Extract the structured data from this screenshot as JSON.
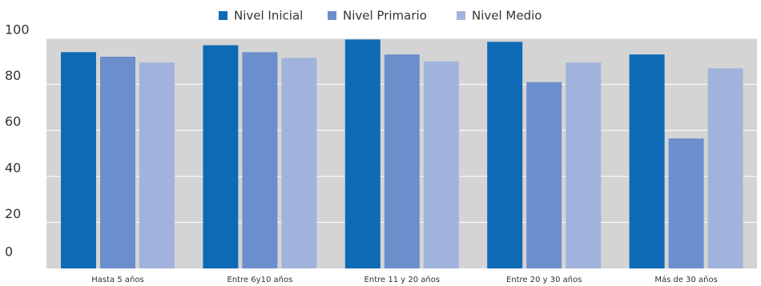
{
  "chart_data": {
    "type": "bar",
    "categories": [
      "Hasta 5 años",
      "Entre 6y10 años",
      "Entre 11 y 20 años",
      "Entre 20 y 30 años",
      "Más de 30 años"
    ],
    "series": [
      {
        "name": "Nivel Inicial",
        "color": "#0f6ab5",
        "values": [
          94,
          97,
          99.5,
          98.5,
          93
        ]
      },
      {
        "name": "Nivel Primario",
        "color": "#6b8fcc",
        "values": [
          92,
          94,
          93,
          81,
          56.5
        ]
      },
      {
        "name": "Nivel Medio",
        "color": "#a1b3dc",
        "values": [
          89.5,
          91.5,
          90,
          89.5,
          87
        ]
      }
    ],
    "ylim": [
      0,
      100
    ],
    "yticks": [
      0,
      20,
      40,
      60,
      80,
      100
    ],
    "grid": true,
    "plot_background": "#d4d4d4",
    "legend_position": "top-center",
    "title": "",
    "xlabel": "",
    "ylabel": ""
  }
}
